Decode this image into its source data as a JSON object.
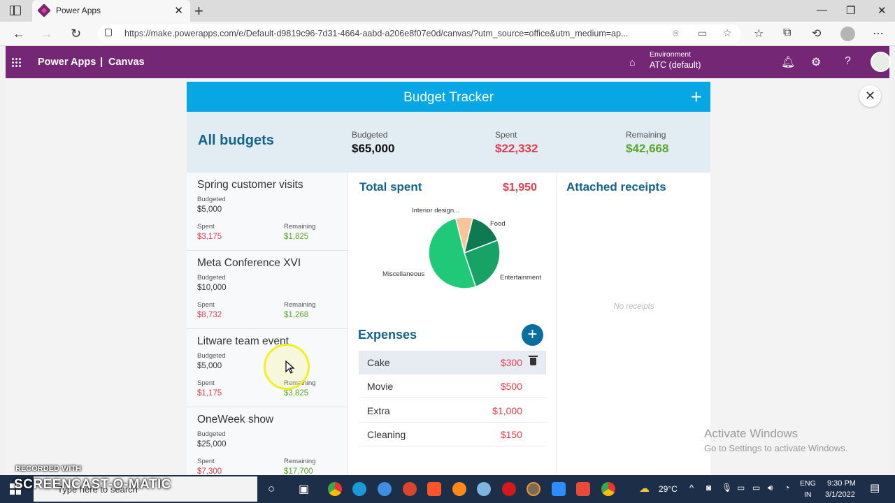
{
  "browser": {
    "tab_title": "Power Apps",
    "tab_close": "✕",
    "new_tab": "+",
    "url": "https://make.powerapps.com/e/Default-d9819c96-7d31-4664-aabd-a206e8f07e0d/canvas/?utm_source=office&utm_medium=ap...",
    "window_controls": [
      "—",
      "❐",
      "✕"
    ]
  },
  "header": {
    "brand": "Power Apps",
    "separator": "|",
    "section": "Canvas",
    "environment_label": "Environment",
    "environment_value": "ATC (default)"
  },
  "app": {
    "title": "Budget Tracker",
    "add_symbol": "+",
    "summary": {
      "heading": "All budgets",
      "budgeted_label": "Budgeted",
      "budgeted_value": "$65,000",
      "spent_label": "Spent",
      "spent_value": "$22,332",
      "remaining_label": "Remaining",
      "remaining_value": "$42,668"
    },
    "budgets": [
      {
        "name": "Spring customer visits",
        "budgeted_label": "Budgeted",
        "budgeted": "$5,000",
        "spent_label": "Spent",
        "spent": "$3,175",
        "remaining_label": "Remaining",
        "remaining": "$1,825"
      },
      {
        "name": "Meta Conference XVI",
        "budgeted_label": "Budgeted",
        "budgeted": "$10,000",
        "spent_label": "Spent",
        "spent": "$8,732",
        "remaining_label": "Remaining",
        "remaining": "$1,268"
      },
      {
        "name": "Litware team event",
        "budgeted_label": "Budgeted",
        "budgeted": "$5,000",
        "spent_label": "Spent",
        "spent": "$1,175",
        "remaining_label": "Remaining",
        "remaining": "$3,825"
      },
      {
        "name": "OneWeek show",
        "budgeted_label": "Budgeted",
        "budgeted": "$25,000",
        "spent_label": "Spent",
        "spent": "$7,300",
        "remaining_label": "Remaining",
        "remaining": "$17,700"
      }
    ],
    "total_spent_label": "Total spent",
    "total_spent_value": "$1,950",
    "expenses_title": "Expenses",
    "expenses": [
      {
        "name": "Cake",
        "amount": "$300"
      },
      {
        "name": "Movie",
        "amount": "$500"
      },
      {
        "name": "Extra",
        "amount": "$1,000"
      },
      {
        "name": "Cleaning",
        "amount": "$150"
      }
    ],
    "receipts_title": "Attached receipts",
    "no_receipts": "No receipts"
  },
  "chart_data": {
    "type": "pie",
    "labels": [
      "Interior design...",
      "Food",
      "Entertainment",
      "Miscellaneous"
    ],
    "values": [
      150,
      300,
      500,
      1000
    ],
    "colors": [
      "#f9c499",
      "#0e7a52",
      "#17a365",
      "#1fc978"
    ]
  },
  "overlay": {
    "activate_title": "Activate Windows",
    "activate_sub": "Go to Settings to activate Windows.",
    "recorded_with": "RECORDED WITH",
    "screencast_logo": "SCREENCAST-O-MATIC"
  },
  "taskbar": {
    "search_placeholder": "Type here to search",
    "temperature": "29°C",
    "language": "ENG",
    "region": "IN",
    "time": "9:30 PM",
    "date": "3/1/2022"
  },
  "colors": {
    "brand_purple": "#742774",
    "title_bar": "#06a7e4",
    "heading_blue": "#15628b",
    "spent_red": "#e33c4e",
    "remaining_green": "#5aa627"
  }
}
